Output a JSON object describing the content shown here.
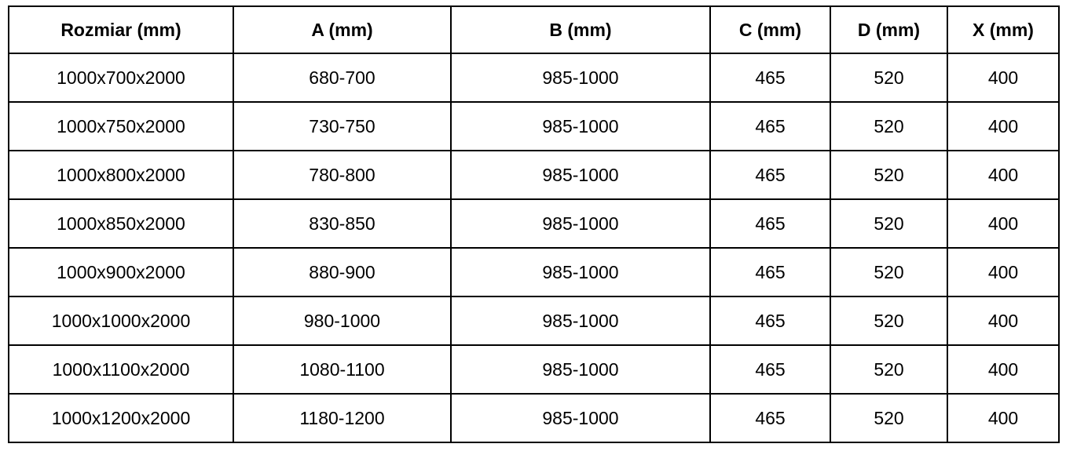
{
  "colors": {
    "border": "#000000",
    "background": "#ffffff",
    "text": "#000000"
  },
  "chart_data": {
    "type": "table",
    "title": "",
    "columns": [
      "Rozmiar (mm)",
      "A (mm)",
      "B (mm)",
      "C (mm)",
      "D (mm)",
      "X (mm)"
    ],
    "rows": [
      [
        "1000x700x2000",
        "680-700",
        "985-1000",
        "465",
        "520",
        "400"
      ],
      [
        "1000x750x2000",
        "730-750",
        "985-1000",
        "465",
        "520",
        "400"
      ],
      [
        "1000x800x2000",
        "780-800",
        "985-1000",
        "465",
        "520",
        "400"
      ],
      [
        "1000x850x2000",
        "830-850",
        "985-1000",
        "465",
        "520",
        "400"
      ],
      [
        "1000x900x2000",
        "880-900",
        "985-1000",
        "465",
        "520",
        "400"
      ],
      [
        "1000x1000x2000",
        "980-1000",
        "985-1000",
        "465",
        "520",
        "400"
      ],
      [
        "1000x1100x2000",
        "1080-1100",
        "985-1000",
        "465",
        "520",
        "400"
      ],
      [
        "1000x1200x2000",
        "1180-1200",
        "985-1000",
        "465",
        "520",
        "400"
      ]
    ]
  }
}
